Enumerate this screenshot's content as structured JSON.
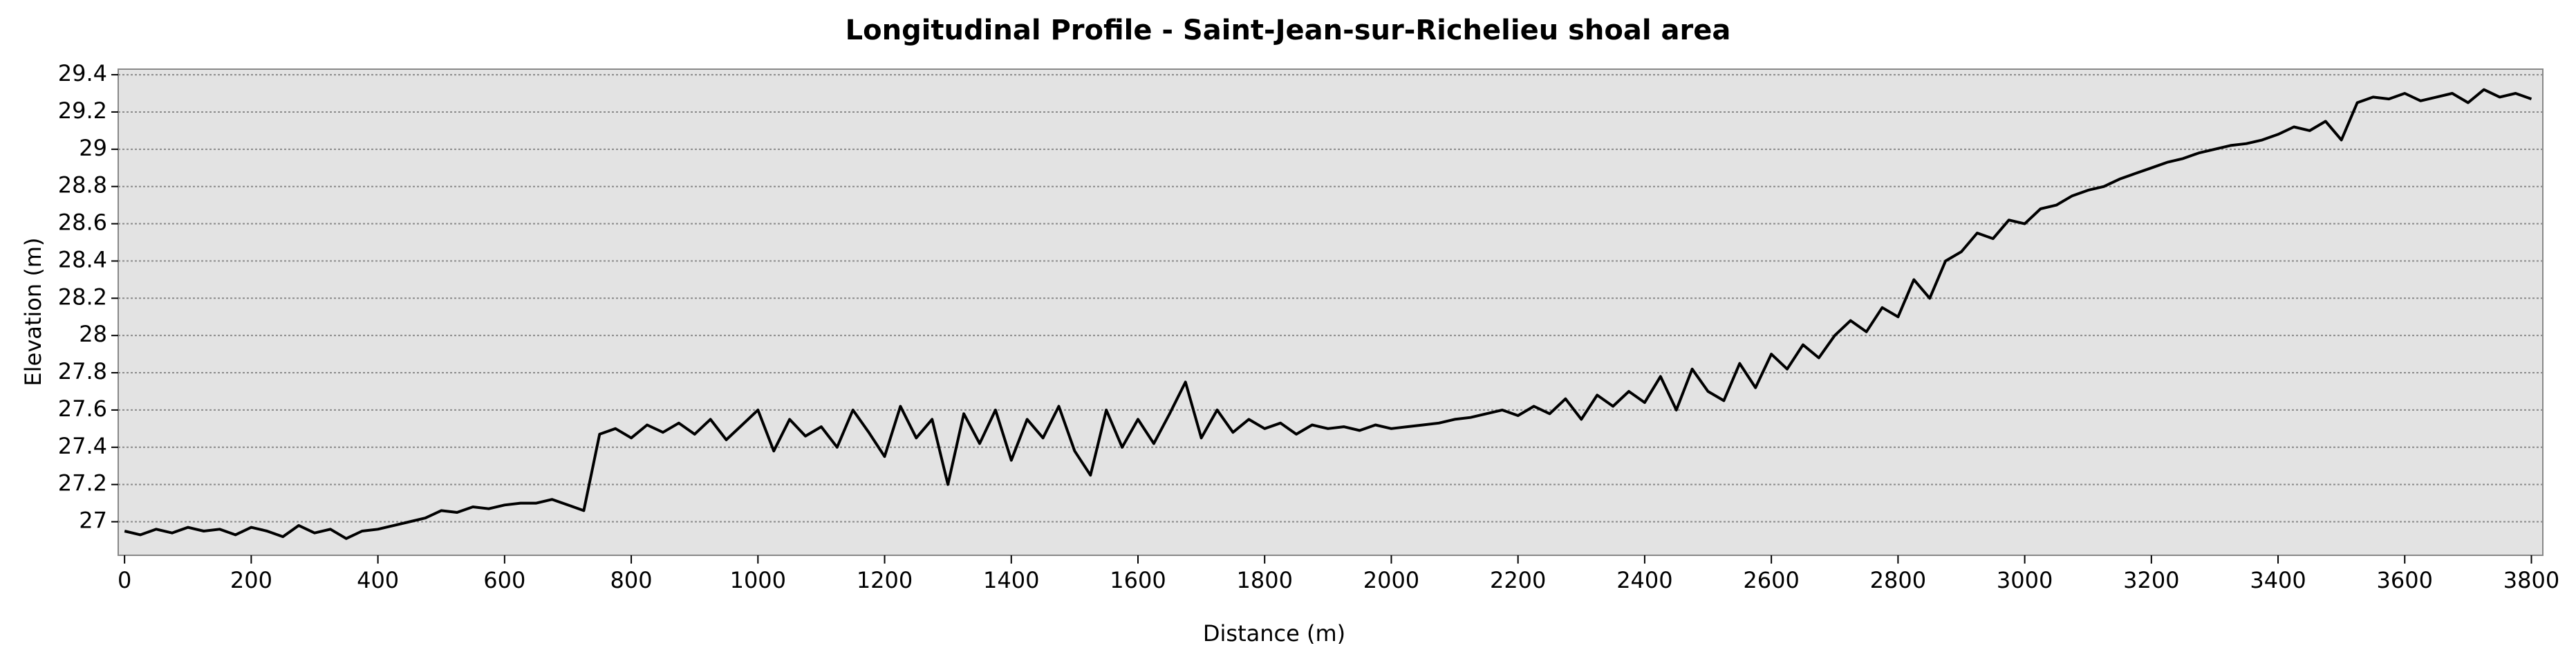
{
  "chart_data": {
    "type": "line",
    "title": "Longitudinal Profile -  Saint-Jean-sur-Richelieu shoal area",
    "x_label": "Distance (m)",
    "y_label": "Elevation (m)",
    "color": "#000000",
    "grid": true,
    "xlim": [
      -10,
      3818
    ],
    "ylim": [
      26.82,
      29.43
    ],
    "xticks": [
      0,
      200,
      400,
      600,
      800,
      1000,
      1200,
      1400,
      1600,
      1800,
      2000,
      2200,
      2400,
      2600,
      2800,
      3000,
      3200,
      3400,
      3600,
      3800
    ],
    "yticks": [
      27,
      27.2,
      27.4,
      27.6,
      27.8,
      28,
      28.2,
      28.4,
      28.6,
      28.8,
      29,
      29.2,
      29.4
    ],
    "x": [
      0,
      25,
      50,
      75,
      100,
      125,
      150,
      175,
      200,
      225,
      250,
      275,
      300,
      325,
      350,
      375,
      400,
      425,
      450,
      475,
      500,
      525,
      550,
      575,
      600,
      625,
      650,
      675,
      700,
      725,
      750,
      775,
      800,
      825,
      850,
      875,
      900,
      925,
      950,
      975,
      1000,
      1025,
      1050,
      1075,
      1100,
      1125,
      1150,
      1175,
      1200,
      1225,
      1250,
      1275,
      1300,
      1325,
      1350,
      1375,
      1400,
      1425,
      1450,
      1475,
      1500,
      1525,
      1550,
      1575,
      1600,
      1625,
      1650,
      1675,
      1700,
      1725,
      1750,
      1775,
      1800,
      1825,
      1850,
      1875,
      1900,
      1925,
      1950,
      1975,
      2000,
      2025,
      2050,
      2075,
      2100,
      2125,
      2150,
      2175,
      2200,
      2225,
      2250,
      2275,
      2300,
      2325,
      2350,
      2375,
      2400,
      2425,
      2450,
      2475,
      2500,
      2525,
      2550,
      2575,
      2600,
      2625,
      2650,
      2675,
      2700,
      2725,
      2750,
      2775,
      2800,
      2825,
      2850,
      2875,
      2900,
      2925,
      2950,
      2975,
      3000,
      3025,
      3050,
      3075,
      3100,
      3125,
      3150,
      3175,
      3200,
      3225,
      3250,
      3275,
      3300,
      3325,
      3350,
      3375,
      3400,
      3425,
      3450,
      3475,
      3500,
      3525,
      3550,
      3575,
      3600,
      3625,
      3650,
      3675,
      3700,
      3725,
      3750,
      3775,
      3800
    ],
    "values": [
      26.95,
      26.93,
      26.96,
      26.94,
      26.97,
      26.95,
      26.96,
      26.93,
      26.97,
      26.95,
      26.92,
      26.98,
      26.94,
      26.96,
      26.91,
      26.95,
      26.96,
      26.98,
      27.0,
      27.02,
      27.06,
      27.05,
      27.08,
      27.07,
      27.09,
      27.1,
      27.1,
      27.12,
      27.09,
      27.06,
      27.47,
      27.5,
      27.45,
      27.52,
      27.48,
      27.53,
      27.47,
      27.55,
      27.44,
      27.52,
      27.6,
      27.38,
      27.55,
      27.46,
      27.51,
      27.4,
      27.6,
      27.48,
      27.35,
      27.62,
      27.45,
      27.55,
      27.2,
      27.58,
      27.42,
      27.6,
      27.33,
      27.55,
      27.45,
      27.62,
      27.38,
      27.25,
      27.6,
      27.4,
      27.55,
      27.42,
      27.58,
      27.75,
      27.45,
      27.6,
      27.48,
      27.55,
      27.5,
      27.53,
      27.47,
      27.52,
      27.5,
      27.51,
      27.49,
      27.52,
      27.5,
      27.51,
      27.52,
      27.53,
      27.55,
      27.56,
      27.58,
      27.6,
      27.57,
      27.62,
      27.58,
      27.66,
      27.55,
      27.68,
      27.62,
      27.7,
      27.64,
      27.78,
      27.6,
      27.82,
      27.7,
      27.65,
      27.85,
      27.72,
      27.9,
      27.82,
      27.95,
      27.88,
      28.0,
      28.08,
      28.02,
      28.15,
      28.1,
      28.3,
      28.2,
      28.4,
      28.45,
      28.55,
      28.52,
      28.62,
      28.6,
      28.68,
      28.7,
      28.75,
      28.78,
      28.8,
      28.84,
      28.87,
      28.9,
      28.93,
      28.95,
      28.98,
      29.0,
      29.02,
      29.03,
      29.05,
      29.08,
      29.12,
      29.1,
      29.15,
      29.05,
      29.25,
      29.28,
      29.27,
      29.3,
      29.26,
      29.28,
      29.3,
      29.25,
      29.32,
      29.28,
      29.3,
      29.27
    ]
  }
}
